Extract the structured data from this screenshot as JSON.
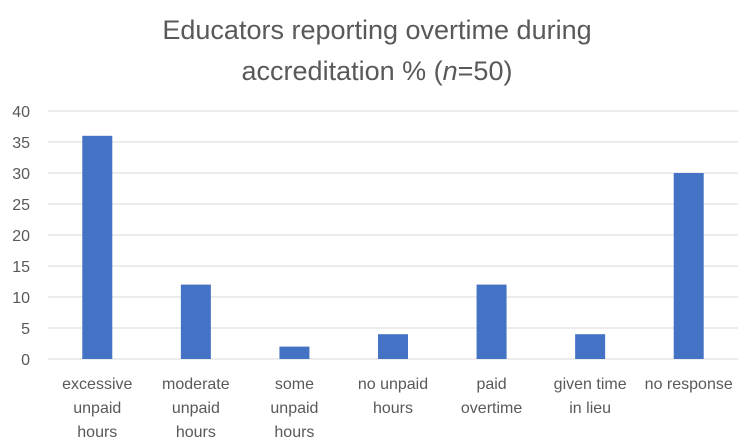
{
  "chart_data": {
    "type": "bar",
    "title_line1": "Educators reporting overtime during",
    "title_line2_prefix": "accreditation % (",
    "title_line2_italic": "n",
    "title_line2_suffix": "=50)",
    "categories": [
      [
        "excessive",
        "unpaid",
        "hours"
      ],
      [
        "moderate",
        "unpaid",
        "hours"
      ],
      [
        "some",
        "unpaid",
        "hours"
      ],
      [
        "no unpaid",
        "hours"
      ],
      [
        "paid",
        "overtime"
      ],
      [
        "given time",
        "in lieu"
      ],
      [
        "no response"
      ]
    ],
    "values": [
      36,
      12,
      2,
      4,
      12,
      4,
      30
    ],
    "ylim": [
      0,
      40
    ],
    "yticks": [
      0,
      5,
      10,
      15,
      20,
      25,
      30,
      35,
      40
    ],
    "grid": true,
    "colors": {
      "bar": "#4472C4",
      "grid": "#D9D9D9",
      "text": "#595959"
    }
  }
}
